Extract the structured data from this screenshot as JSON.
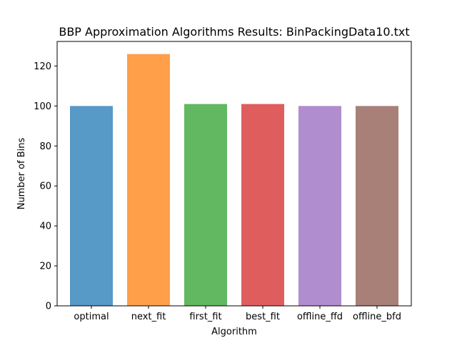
{
  "chart_data": {
    "type": "bar",
    "title": "BBP Approximation Algorithms Results: BinPackingData10.txt",
    "xlabel": "Algorithm",
    "ylabel": "Number of Bins",
    "categories": [
      "optimal",
      "next_fit",
      "first_fit",
      "best_fit",
      "offline_ffd",
      "offline_bfd"
    ],
    "values": [
      100,
      126,
      101,
      101,
      100,
      100
    ],
    "colors": [
      "#1f77b4",
      "#ff7f0e",
      "#2ca02c",
      "#d62728",
      "#9467bd",
      "#8c564b"
    ],
    "bar_opacity": 0.75,
    "ylim": [
      0,
      132.3
    ],
    "yticks": [
      0,
      20,
      40,
      60,
      80,
      100,
      120
    ],
    "grid": false,
    "legend": "none"
  }
}
